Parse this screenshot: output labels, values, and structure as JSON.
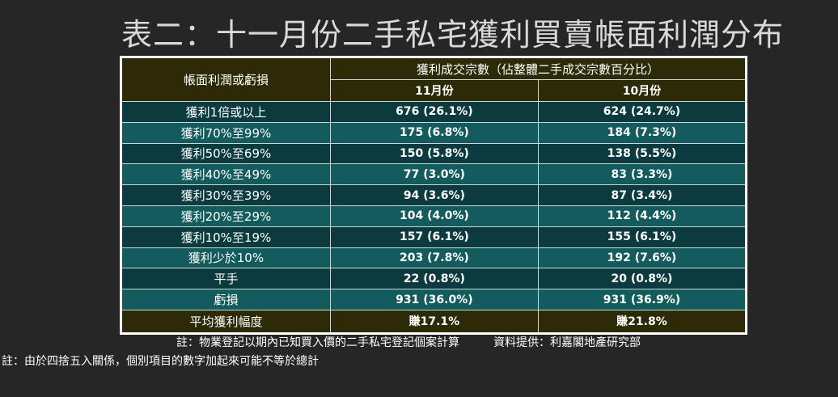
{
  "title": "表二：十一月份二手私宅獲利買賣帳面利潤分布",
  "table": {
    "row_header": "帳面利潤或虧損",
    "group_header": "獲利成交宗數（佔整體二手成交宗數百分比）",
    "columns": [
      "11月份",
      "10月份"
    ],
    "rows": [
      {
        "label": "獲利1倍或以上",
        "nov": "676 (26.1%)",
        "oct": "624 (24.7%)"
      },
      {
        "label": "獲利70%至99%",
        "nov": "175 (6.8%)",
        "oct": "184 (7.3%)"
      },
      {
        "label": "獲利50%至69%",
        "nov": "150 (5.8%)",
        "oct": "138 (5.5%)"
      },
      {
        "label": "獲利40%至49%",
        "nov": "77 (3.0%)",
        "oct": "83 (3.3%)"
      },
      {
        "label": "獲利30%至39%",
        "nov": "94 (3.6%)",
        "oct": "87 (3.4%)"
      },
      {
        "label": "獲利20%至29%",
        "nov": "104 (4.0%)",
        "oct": "112 (4.4%)"
      },
      {
        "label": "獲利10%至19%",
        "nov": "157 (6.1%)",
        "oct": "155 (6.1%)"
      },
      {
        "label": "獲利少於10%",
        "nov": "203 (7.8%)",
        "oct": "192 (7.6%)"
      },
      {
        "label": "平手",
        "nov": "22 (0.8%)",
        "oct": "20 (0.8%)"
      },
      {
        "label": "虧損",
        "nov": "931 (36.0%)",
        "oct": "931 (36.9%)"
      }
    ],
    "footer": {
      "label": "平均獲利幅度",
      "nov": "賺17.1%",
      "oct": "賺21.8%"
    }
  },
  "notes": {
    "note1": "註：物業登記以期內已知買入價的二手私宅登記個案計算",
    "source": "資料提供：利嘉閣地產研究部",
    "note2": "註：由於四捨五入關係，個別項目的數字加起來可能不等於總計"
  },
  "colors": {
    "background": "#262626",
    "header": "#2d2a08",
    "row_dark": "#0c3b3f",
    "row_light": "#145b5d"
  }
}
